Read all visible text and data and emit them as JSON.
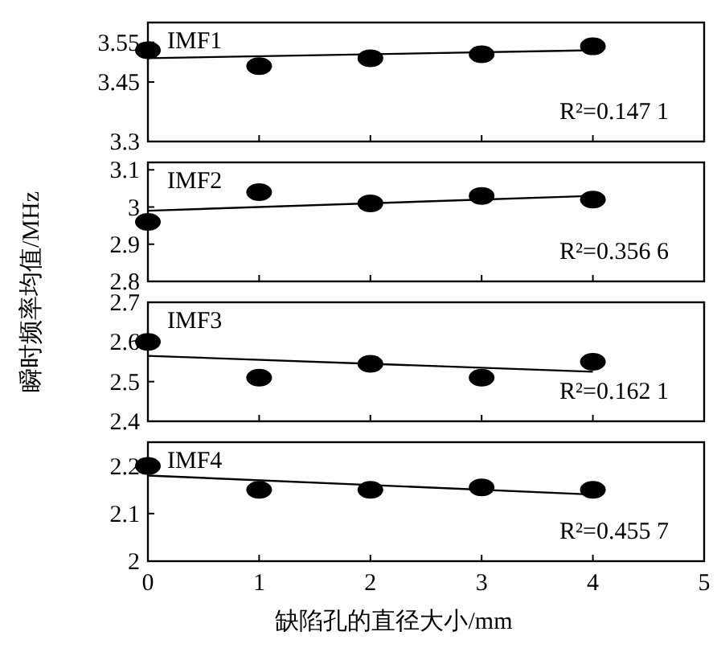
{
  "chart_data": [
    {
      "type": "scatter",
      "ylabel": "瞬时频率均值/MHz",
      "annotations": [
        "IMF1",
        "R²=0.147 1"
      ],
      "xlim": [
        0,
        5
      ],
      "xticks": [
        0,
        1,
        2,
        3,
        4,
        5
      ],
      "ylim": [
        3.3,
        3.6
      ],
      "yticks": [
        3.3,
        3.45,
        3.55
      ],
      "tick_labels": "y",
      "series": [
        {
          "type": "scatter",
          "marker": "circle",
          "color": "#000000",
          "x": [
            0,
            1,
            2,
            3,
            4
          ],
          "values": [
            3.53,
            3.49,
            3.51,
            3.52,
            3.54
          ]
        },
        {
          "type": "line",
          "marker": "none",
          "color": "#000000",
          "x": [
            0,
            4
          ],
          "values": [
            3.51,
            3.53
          ]
        }
      ]
    },
    {
      "type": "scatter",
      "annotations": [
        "IMF2",
        "R²=0.356 6"
      ],
      "xlim": [
        0,
        5
      ],
      "xticks": [
        0,
        1,
        2,
        3,
        4,
        5
      ],
      "ylim": [
        2.8,
        3.12
      ],
      "yticks": [
        2.8,
        2.9,
        3,
        3.1
      ],
      "tick_labels": "y",
      "series": [
        {
          "type": "scatter",
          "marker": "circle",
          "color": "#000000",
          "x": [
            0,
            1,
            2,
            3,
            4
          ],
          "values": [
            2.96,
            3.04,
            3.01,
            3.03,
            3.02
          ]
        },
        {
          "type": "line",
          "marker": "none",
          "color": "#000000",
          "x": [
            0,
            4
          ],
          "values": [
            2.99,
            3.03
          ]
        }
      ]
    },
    {
      "type": "scatter",
      "annotations": [
        "IMF3",
        "R²=0.162 1"
      ],
      "xlim": [
        0,
        5
      ],
      "xticks": [
        0,
        1,
        2,
        3,
        4,
        5
      ],
      "ylim": [
        2.4,
        2.7
      ],
      "yticks": [
        2.4,
        2.5,
        2.6,
        2.7
      ],
      "tick_labels": "y",
      "series": [
        {
          "type": "scatter",
          "marker": "circle",
          "color": "#000000",
          "x": [
            0,
            1,
            2,
            3,
            4
          ],
          "values": [
            2.6,
            2.51,
            2.545,
            2.51,
            2.55
          ]
        },
        {
          "type": "line",
          "marker": "none",
          "color": "#000000",
          "x": [
            0,
            4
          ],
          "values": [
            2.565,
            2.525
          ]
        }
      ]
    },
    {
      "type": "scatter",
      "xlabel": "缺陷孔的直径大小/mm",
      "annotations": [
        "IMF4",
        "R²=0.455 7"
      ],
      "xlim": [
        0,
        5
      ],
      "xticks": [
        0,
        1,
        2,
        3,
        4,
        5
      ],
      "ylim": [
        2,
        2.25
      ],
      "yticks": [
        2,
        2.1,
        2.2
      ],
      "series": [
        {
          "type": "scatter",
          "marker": "circle",
          "color": "#000000",
          "x": [
            0,
            1,
            2,
            3,
            4
          ],
          "values": [
            2.2,
            2.15,
            2.15,
            2.155,
            2.15
          ]
        },
        {
          "type": "line",
          "marker": "none",
          "color": "#000000",
          "x": [
            0,
            4
          ],
          "values": [
            2.18,
            2.14
          ]
        }
      ]
    }
  ]
}
